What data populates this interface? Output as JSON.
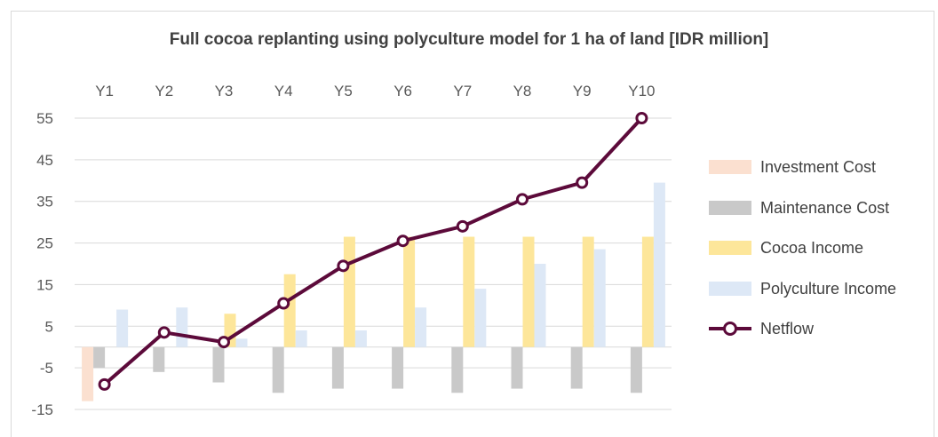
{
  "chart_data": {
    "type": "bar",
    "title": "Full cocoa replanting using polyculture model for 1 ha of land [IDR million]",
    "categories": [
      "Y1",
      "Y2",
      "Y3",
      "Y4",
      "Y5",
      "Y6",
      "Y7",
      "Y8",
      "Y9",
      "Y10"
    ],
    "yticks": [
      "55",
      "45",
      "35",
      "25",
      "15",
      "5",
      "-5",
      "-15"
    ],
    "ylim": [
      -15,
      55
    ],
    "grid": true,
    "legend_position": "right",
    "series": [
      {
        "name": "Investment Cost",
        "type": "bar",
        "color": "#fbe0d0",
        "values": [
          -13,
          0,
          0,
          0,
          0,
          0,
          0,
          0,
          0,
          0
        ]
      },
      {
        "name": "Maintenance Cost",
        "type": "bar",
        "color": "#c9c9c9",
        "values": [
          -5,
          -6,
          -8.5,
          -11,
          -10,
          -10,
          -11,
          -10,
          -10,
          -11
        ]
      },
      {
        "name": "Cocoa Income",
        "type": "bar",
        "color": "#fde69a",
        "values": [
          0,
          0,
          8,
          17.5,
          26.5,
          26.5,
          26.5,
          26.5,
          26.5,
          26.5
        ]
      },
      {
        "name": "Polyculture Income",
        "type": "bar",
        "color": "#dde8f6",
        "values": [
          9,
          9.5,
          2,
          4,
          4,
          9.5,
          14,
          20,
          23.5,
          39.5
        ]
      },
      {
        "name": "Netflow",
        "type": "line",
        "color": "#5c0a3a",
        "values": [
          -9,
          3.5,
          1.2,
          10.5,
          19.5,
          25.5,
          29,
          35.5,
          39.5,
          55
        ]
      }
    ]
  }
}
